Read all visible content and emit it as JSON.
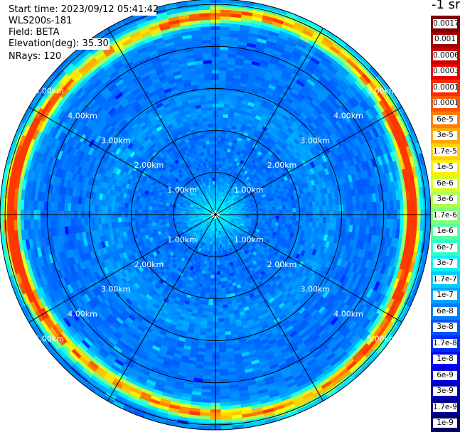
{
  "header": {
    "start_time": "Start time: 2023/09/12 05:41:42",
    "instrument": "WLS200s-181",
    "field": "Field: BETA",
    "elevation": "Elevation(deg): 35.30",
    "nrays": "NRays: 120"
  },
  "colorbar": {
    "unit": "-1 sr",
    "labels": [
      "0.0017",
      "0.001",
      "0.0006",
      "0.0003",
      "0.00017",
      "0.0001",
      "6e-5",
      "3e-5",
      "1.7e-5",
      "1e-5",
      "6e-6",
      "3e-6",
      "1.7e-6",
      "1e-6",
      "6e-7",
      "3e-7",
      "1.7e-7",
      "1e-7",
      "6e-8",
      "3e-8",
      "1.7e-8",
      "1e-8",
      "6e-9",
      "3e-9",
      "1.7e-9",
      "1e-9"
    ],
    "colors": [
      "#7f0000",
      "#a00000",
      "#c80000",
      "#ee0000",
      "#ff2a00",
      "#ff5400",
      "#ff7e00",
      "#ffa800",
      "#ffd200",
      "#fcf000",
      "#d6ff21",
      "#acff4b",
      "#82ff75",
      "#58ff9f",
      "#2effc9",
      "#05f5f3",
      "#00ccff",
      "#00a4ff",
      "#007cff",
      "#0054ff",
      "#002cff",
      "#0004ff",
      "#0000da",
      "#0000b2",
      "#00008a",
      "#000066"
    ]
  },
  "chart_data": {
    "type": "heatmap",
    "subtype": "polar-ppi",
    "field": "BETA",
    "elevation_deg": 35.3,
    "nrays": 120,
    "range_ring_labels": [
      "1.00km",
      "2.00km",
      "3.00km",
      "4.00km",
      "5.00km"
    ],
    "range_rings_km": [
      1,
      2,
      3,
      4,
      5
    ],
    "radial_lines_deg": [
      0,
      30,
      60,
      90,
      120,
      150,
      180,
      210,
      240,
      270,
      300,
      330
    ],
    "max_range_km": 5.12,
    "background_beta": "3e-8 to 1e-7",
    "features": [
      {
        "range_km": 4.75,
        "beta_peak": "3e-5",
        "azimuth_span_deg": "full circle, strongest west and east"
      },
      {
        "range_km": 0.25,
        "beta_peak": "1.7e-7",
        "azimuth_span_deg": "near-field ring"
      }
    ]
  }
}
